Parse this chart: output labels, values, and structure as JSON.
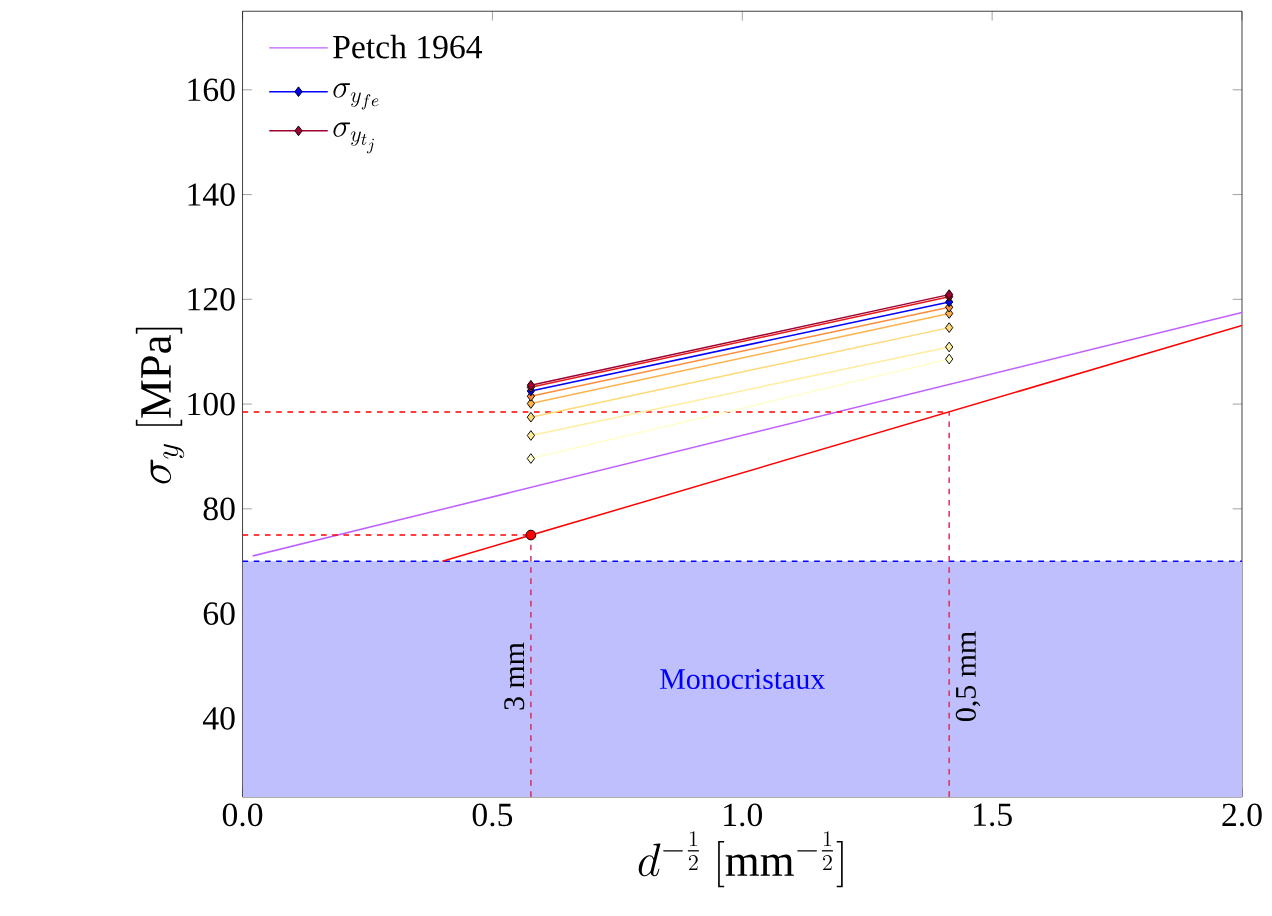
{
  "chart_data": {
    "type": "line",
    "xlabel": "d^{-\\frac{1}{2}}\\ [\\mathrm{mm}^{-\\frac{1}{2}}]",
    "ylabel": "\\sigma_y\\ [\\mathrm{MPa}]",
    "xlim": [
      0,
      2
    ],
    "ylim": [
      25,
      175
    ],
    "xticks": [
      {
        "value": 0,
        "label": "0.0"
      },
      {
        "value": 0.5,
        "label": "0.5"
      },
      {
        "value": 1,
        "label": "1.0"
      },
      {
        "value": 1.5,
        "label": "1.5"
      },
      {
        "value": 2,
        "label": "2.0"
      }
    ],
    "yticks": [
      40,
      60,
      80,
      100,
      120,
      140,
      160
    ],
    "grid": false,
    "legend": "top left",
    "bands": [
      {
        "axis": "y",
        "from": 25,
        "to": 70,
        "label": "Monocristaux",
        "color": "#bfbffd"
      }
    ],
    "ref_lines": [
      {
        "axis": "y",
        "value": 70,
        "color": "#0000ff",
        "line_style": "dashed"
      }
    ],
    "annotations": [
      {
        "text": "3 mm",
        "x": 0.577,
        "y": 48
      },
      {
        "text": "0,5 mm",
        "x": 1.414,
        "y": 48
      }
    ],
    "series": [
      {
        "name": "\\text{Petch 1964}",
        "color": "#bf5fff",
        "x": [
          0.02,
          2.0
        ],
        "values": [
          71,
          117.5
        ],
        "marker": "none",
        "line_style": "solid"
      },
      {
        "type": "line",
        "color": "#ff0000",
        "x": [
          0.4,
          2.0
        ],
        "values": [
          70,
          115
        ],
        "marker": "none",
        "line_style": "solid"
      },
      {
        "type": "scatter",
        "color": "#ff0000",
        "x": [
          0.577
        ],
        "values": [
          75
        ],
        "marker": "circle"
      },
      {
        "type": "line",
        "color": "#ff0000",
        "x": [
          0,
          0.577
        ],
        "values": [
          75,
          75
        ],
        "marker": "none",
        "line_style": "dashed"
      },
      {
        "type": "line",
        "color": "#ff0000",
        "x": [
          0,
          1.414
        ],
        "values": [
          98.5,
          98.5
        ],
        "marker": "none",
        "line_style": "dashed"
      },
      {
        "type": "line",
        "color": "#d62f5a",
        "x": [
          0.577,
          0.577
        ],
        "values": [
          25,
          75
        ],
        "marker": "none",
        "line_style": "dashed"
      },
      {
        "type": "line",
        "color": "#d62f5a",
        "x": [
          1.414,
          1.414
        ],
        "values": [
          25,
          98.5
        ],
        "marker": "none",
        "line_style": "dashed"
      },
      {
        "type": "line",
        "color": "#ffffcc",
        "x": [
          0.577,
          1.414
        ],
        "values": [
          89.6,
          108.6
        ],
        "marker": "diamond",
        "line_style": "solid"
      },
      {
        "type": "line",
        "color": "#ffeda0",
        "x": [
          0.577,
          1.414
        ],
        "values": [
          94,
          110.9
        ],
        "marker": "diamond",
        "line_style": "solid"
      },
      {
        "type": "line",
        "color": "#fed976",
        "x": [
          0.577,
          1.414
        ],
        "values": [
          97.5,
          114.6
        ],
        "marker": "diamond",
        "line_style": "solid"
      },
      {
        "type": "line",
        "color": "#feb24c",
        "x": [
          0.577,
          1.414
        ],
        "values": [
          100.1,
          117.3
        ],
        "marker": "diamond",
        "line_style": "solid"
      },
      {
        "type": "line",
        "color": "#fd8d3c",
        "x": [
          0.577,
          1.414
        ],
        "values": [
          101.5,
          118.5
        ],
        "marker": "diamond",
        "line_style": "solid"
      },
      {
        "name": "\\sigma_{y_{fe}}",
        "type": "line",
        "color": "#0000ff",
        "x": [
          0.577,
          1.414
        ],
        "values": [
          102.5,
          119.5
        ],
        "marker": "diamond",
        "line_style": "solid"
      },
      {
        "type": "line",
        "color": "#e31a1c",
        "x": [
          0.577,
          1.414
        ],
        "values": [
          103.2,
          120.5
        ],
        "marker": "diamond",
        "line_style": "solid"
      },
      {
        "name": "\\sigma_{y_{t_j}}",
        "type": "line",
        "color": "#a00030",
        "x": [
          0.577,
          1.414
        ],
        "values": [
          103.6,
          120.9
        ],
        "marker": "diamond",
        "line_style": "solid"
      }
    ]
  }
}
